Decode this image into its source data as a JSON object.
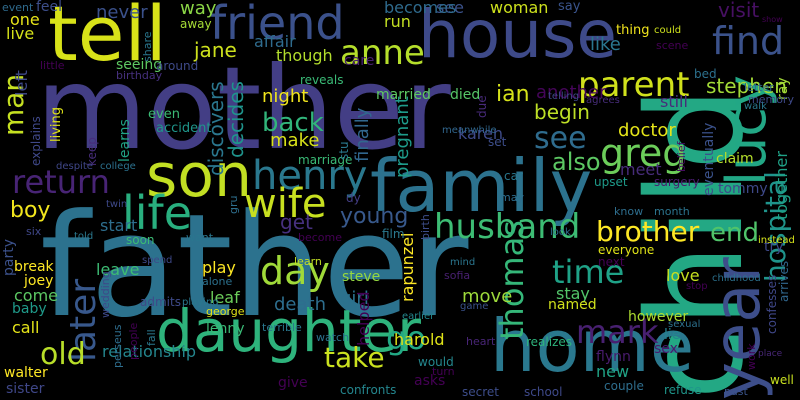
{
  "background": "#000000",
  "words": [
    {
      "text": "father",
      "color": "#2c728e"
    },
    {
      "text": "mother",
      "color": "#433e85"
    },
    {
      "text": "child",
      "color": "#23a884"
    },
    {
      "text": "home",
      "color": "#2a788e"
    },
    {
      "text": "house",
      "color": "#3e4a89"
    },
    {
      "text": "tell",
      "color": "#d8e219"
    },
    {
      "text": "family",
      "color": "#2c728e"
    },
    {
      "text": "daughter",
      "color": "#2eb37c"
    },
    {
      "text": "son",
      "color": "#c2df23"
    },
    {
      "text": "year",
      "color": "#3d4e8a"
    },
    {
      "text": "lucy",
      "color": "#22a785"
    },
    {
      "text": "friend",
      "color": "#3b518b"
    },
    {
      "text": "life",
      "color": "#29af7f"
    },
    {
      "text": "return",
      "color": "#482475"
    },
    {
      "text": "henry",
      "color": "#2a788e"
    },
    {
      "text": "wife",
      "color": "#c8e020"
    },
    {
      "text": "find",
      "color": "#3b528b"
    },
    {
      "text": "anne",
      "color": "#b5de2b"
    },
    {
      "text": "later",
      "color": "#38588c"
    },
    {
      "text": "husband",
      "color": "#3dbc74"
    },
    {
      "text": "thomas",
      "color": "#35b779"
    },
    {
      "text": "greg",
      "color": "#6ccd5a"
    },
    {
      "text": "parent",
      "color": "#d0e11c"
    },
    {
      "text": "hospital",
      "color": "#1f948c"
    },
    {
      "text": "time",
      "color": "#1fa287"
    },
    {
      "text": "mark",
      "color": "#482071"
    },
    {
      "text": "day",
      "color": "#a0da39"
    },
    {
      "text": "man",
      "color": "#c5e021"
    },
    {
      "text": "old",
      "color": "#b8de29"
    },
    {
      "text": "brother",
      "color": "#fde725"
    },
    {
      "text": "go",
      "color": "#22a884"
    },
    {
      "text": "see",
      "color": "#2f6c8e"
    },
    {
      "text": "back",
      "color": "#31b57b"
    },
    {
      "text": "take",
      "color": "#cae11f"
    },
    {
      "text": "young",
      "color": "#38598c"
    },
    {
      "text": "stephen",
      "color": "#a2da37"
    },
    {
      "text": "end",
      "color": "#50c46a"
    },
    {
      "text": "tommy",
      "color": "#3e4989"
    },
    {
      "text": "boy",
      "color": "#f1e51d"
    },
    {
      "text": "jane",
      "color": "#cde11d"
    },
    {
      "text": "ian",
      "color": "#d5e21a"
    },
    {
      "text": "begin",
      "color": "#bddf26"
    },
    {
      "text": "also",
      "color": "#5cc863"
    },
    {
      "text": "doctor",
      "color": "#e5e419"
    },
    {
      "text": "decides",
      "color": "#1f948c"
    },
    {
      "text": "discovers",
      "color": "#2a778e"
    },
    {
      "text": "make",
      "color": "#d8e219"
    },
    {
      "text": "night",
      "color": "#f1e51d"
    },
    {
      "text": "pregnant",
      "color": "#1e9b8a"
    },
    {
      "text": "another",
      "color": "#450559"
    },
    {
      "text": "married",
      "color": "#5ec962"
    },
    {
      "text": "died",
      "color": "#56c667"
    },
    {
      "text": "karen",
      "color": "#3e4a89"
    },
    {
      "text": "finally",
      "color": "#31678e"
    },
    {
      "text": "like",
      "color": "#2a778e"
    },
    {
      "text": "still",
      "color": "#472d7b"
    },
    {
      "text": "eventually",
      "color": "#3b528b"
    },
    {
      "text": "together",
      "color": "#1fa287"
    },
    {
      "text": "ray",
      "color": "#a2da37"
    },
    {
      "text": "meet",
      "color": "#472c7a"
    },
    {
      "text": "claim",
      "color": "#b5de2b"
    },
    {
      "text": "visit",
      "color": "#471063"
    },
    {
      "text": "get",
      "color": "#46307e"
    },
    {
      "text": "play",
      "color": "#fde725"
    },
    {
      "text": "start",
      "color": "#2e6e8e"
    },
    {
      "text": "leave",
      "color": "#3dbc74"
    },
    {
      "text": "leaf",
      "color": "#6ccd5a"
    },
    {
      "text": "lenny",
      "color": "#3aba76"
    },
    {
      "text": "death",
      "color": "#2e6e8e"
    },
    {
      "text": "girl",
      "color": "#2c718e"
    },
    {
      "text": "helped",
      "color": "#440154"
    },
    {
      "text": "rapunzel",
      "color": "#fde725"
    },
    {
      "text": "move",
      "color": "#9dd93b"
    },
    {
      "text": "stay",
      "color": "#52c569"
    },
    {
      "text": "named",
      "color": "#d0e11c"
    },
    {
      "text": "however",
      "color": "#addc30"
    },
    {
      "text": "love",
      "color": "#c8e020"
    },
    {
      "text": "sex",
      "color": "#481a6c"
    },
    {
      "text": "lie",
      "color": "#25848e"
    },
    {
      "text": "try",
      "color": "#3e4989"
    },
    {
      "text": "harold",
      "color": "#dfe318"
    },
    {
      "text": "realizes",
      "color": "#2eb37c"
    },
    {
      "text": "relationship",
      "color": "#24868e"
    },
    {
      "text": "call",
      "color": "#e5e419"
    },
    {
      "text": "come",
      "color": "#5cc863"
    },
    {
      "text": "party",
      "color": "#3b518b"
    },
    {
      "text": "break",
      "color": "#fde725"
    },
    {
      "text": "baby",
      "color": "#1f9a8a"
    },
    {
      "text": "joey",
      "color": "#fde725"
    },
    {
      "text": "walter",
      "color": "#fde725"
    },
    {
      "text": "sister",
      "color": "#3f4788"
    },
    {
      "text": "give",
      "color": "#440154"
    },
    {
      "text": "asks",
      "color": "#440154"
    },
    {
      "text": "new",
      "color": "#20a386"
    },
    {
      "text": "flynn",
      "color": "#481b6d"
    },
    {
      "text": "refuse",
      "color": "#1f968b"
    },
    {
      "text": "well",
      "color": "#c8e020"
    },
    {
      "text": "confronts",
      "color": "#24868e"
    },
    {
      "text": "school",
      "color": "#3e4989"
    },
    {
      "text": "secret",
      "color": "#3d4d8a"
    },
    {
      "text": "couple",
      "color": "#2e6e8e"
    },
    {
      "text": "past",
      "color": "#3a548c"
    },
    {
      "text": "turn",
      "color": "#440154"
    },
    {
      "text": "would",
      "color": "#24878e"
    },
    {
      "text": "heart",
      "color": "#482576"
    },
    {
      "text": "steve",
      "color": "#95d840"
    },
    {
      "text": "learn",
      "color": "#c2df23"
    },
    {
      "text": "watch",
      "color": "#2c728e"
    },
    {
      "text": "sofia",
      "color": "#482071"
    },
    {
      "text": "never",
      "color": "#3b518b"
    },
    {
      "text": "way",
      "color": "#8bd646"
    },
    {
      "text": "feel",
      "color": "#3d4e8a"
    },
    {
      "text": "one",
      "color": "#e7e419"
    },
    {
      "text": "live",
      "color": "#d5e21a"
    },
    {
      "text": "left",
      "color": "#3e4989"
    },
    {
      "text": "event",
      "color": "#2f6b8e"
    },
    {
      "text": "see",
      "color": "#2f6c8e"
    },
    {
      "text": "woman",
      "color": "#3b528b"
    },
    {
      "text": "becomes",
      "color": "#cde11d"
    },
    {
      "text": "run",
      "color": "#2f6b8e"
    },
    {
      "text": "say",
      "color": "#c2df23"
    },
    {
      "text": "affair",
      "color": "#3a548c"
    },
    {
      "text": "though",
      "color": "#2f6c8e"
    },
    {
      "text": "away",
      "color": "#b2dd2d"
    },
    {
      "text": "share",
      "color": "#a5db36"
    },
    {
      "text": "seeing",
      "color": "#2a778e"
    },
    {
      "text": "around",
      "color": "#5ec962"
    },
    {
      "text": "birthday",
      "color": "#3e4a89"
    },
    {
      "text": "little",
      "color": "#46307e"
    },
    {
      "text": "learns",
      "color": "#440154"
    },
    {
      "text": "accident",
      "color": "#20a386"
    },
    {
      "text": "even",
      "color": "#1f968b"
    },
    {
      "text": "living",
      "color": "#3bbb75"
    },
    {
      "text": "keep",
      "color": "#dfe318"
    },
    {
      "text": "explains",
      "color": "#472d7b"
    },
    {
      "text": "despite",
      "color": "#3f4889"
    },
    {
      "text": "college",
      "color": "#3f4788"
    },
    {
      "text": "marriage",
      "color": "#2c718e"
    },
    {
      "text": "stu",
      "color": "#3aba76"
    },
    {
      "text": "reveals",
      "color": "#2a788e"
    },
    {
      "text": "due",
      "color": "#3aba76"
    },
    {
      "text": "telling",
      "color": "#472a7a"
    },
    {
      "text": "agrees",
      "color": "#3f4889"
    },
    {
      "text": "meanwhile",
      "color": "#472d7b"
    },
    {
      "text": "set",
      "color": "#31678e"
    },
    {
      "text": "car",
      "color": "#3d4e8a"
    },
    {
      "text": "may",
      "color": "#2a778e"
    },
    {
      "text": "upset",
      "color": "#2e6e8e"
    },
    {
      "text": "belief",
      "color": "#1e9b8a"
    },
    {
      "text": "surgery",
      "color": "#470d60"
    },
    {
      "text": "know",
      "color": "#481c6e"
    },
    {
      "text": "month",
      "color": "#2e6e8e"
    },
    {
      "text": "dy",
      "color": "#2b748e"
    },
    {
      "text": "gru",
      "color": "#433d84"
    },
    {
      "text": "want",
      "color": "#2e6f8e"
    },
    {
      "text": "become",
      "color": "#2a768e"
    },
    {
      "text": "film",
      "color": "#440154"
    },
    {
      "text": "birth",
      "color": "#2a788e"
    },
    {
      "text": "look",
      "color": "#3d4e8a"
    },
    {
      "text": "everyone",
      "color": "#2f6c8e"
    },
    {
      "text": "next",
      "color": "#dfe318"
    },
    {
      "text": "mind",
      "color": "#440154"
    },
    {
      "text": "game",
      "color": "#2a768e"
    },
    {
      "text": "earlier",
      "color": "#3b528b"
    },
    {
      "text": "stop",
      "color": "#24878e"
    },
    {
      "text": "sexual",
      "color": "#440154"
    },
    {
      "text": "work",
      "color": "#2c718e"
    },
    {
      "text": "childhood",
      "color": "#440154"
    },
    {
      "text": "confesses",
      "color": "#2c718e"
    },
    {
      "text": "arrives",
      "color": "#3f4788"
    },
    {
      "text": "instead",
      "color": "#31678e"
    },
    {
      "text": "place",
      "color": "#d5e21a"
    },
    {
      "text": "terrible",
      "color": "#482777"
    },
    {
      "text": "george",
      "color": "#2a778e"
    },
    {
      "text": "alone",
      "color": "#e2e418"
    },
    {
      "text": "playing",
      "color": "#2c718e"
    },
    {
      "text": "spend",
      "color": "#2a788e"
    },
    {
      "text": "admits",
      "color": "#3e4989"
    },
    {
      "text": "fall",
      "color": "#3e4a89"
    },
    {
      "text": "people",
      "color": "#2a788e"
    },
    {
      "text": "perseus",
      "color": "#440154"
    },
    {
      "text": "wedding",
      "color": "#2e6e8e"
    },
    {
      "text": "soon",
      "color": "#3e4989"
    },
    {
      "text": "told",
      "color": "#3bbb75"
    },
    {
      "text": "six",
      "color": "#2a788e"
    },
    {
      "text": "twin",
      "color": "#3f4788"
    },
    {
      "text": "show",
      "color": "#3e4989"
    },
    {
      "text": "memory",
      "color": "#440154"
    },
    {
      "text": "letter",
      "color": "#3e4989"
    },
    {
      "text": "walk",
      "color": "#31678e"
    },
    {
      "text": "bed",
      "color": "#2a788e"
    },
    {
      "text": "thing",
      "color": "#2c718e"
    },
    {
      "text": "could",
      "color": "#f1e51d"
    },
    {
      "text": "scene",
      "color": "#cde11d"
    },
    {
      "text": "care",
      "color": "#440154"
    },
    {
      "text": "n",
      "color": "#482071"
    }
  ]
}
